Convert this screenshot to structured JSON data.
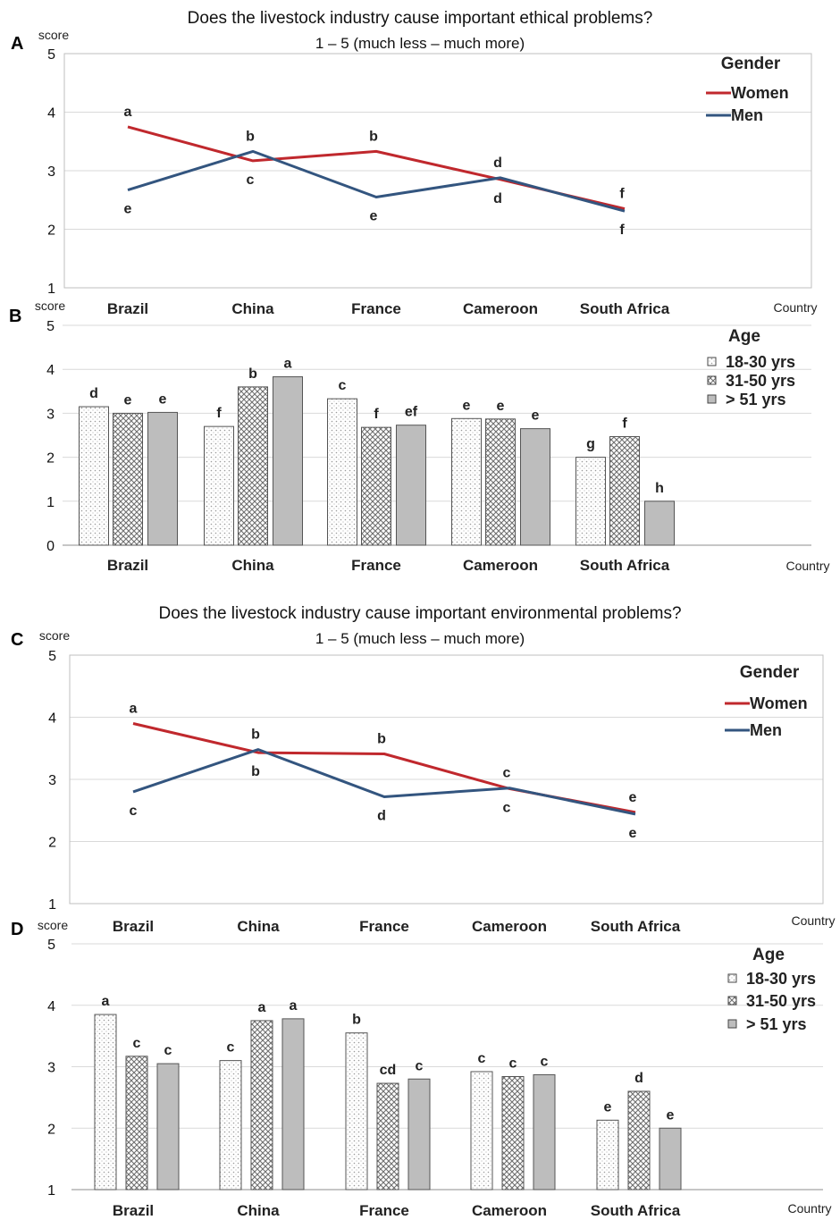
{
  "chart_data": [
    {
      "type": "line",
      "panel": "A",
      "title": "Does the livestock industry cause important ethical problems?",
      "subtitle": "1 – 5 (much less – much more)",
      "ylabel": "score",
      "xlabel": "Country",
      "ylim": [
        1,
        5
      ],
      "yticks": [
        "1",
        "2",
        "3",
        "4",
        "5"
      ],
      "categories": [
        "Brazil",
        "China",
        "France",
        "Cameroon",
        "South Africa"
      ],
      "legend_title": "Gender",
      "legend_position": "top-right",
      "series": [
        {
          "name": "Women",
          "color": "#c0282d",
          "values": [
            3.75,
            3.17,
            3.33,
            2.85,
            2.35
          ],
          "labels": [
            "a",
            "c",
            "b",
            "d",
            "f"
          ]
        },
        {
          "name": "Men",
          "color": "#33557f",
          "values": [
            2.67,
            3.33,
            2.55,
            2.88,
            2.31
          ],
          "labels": [
            "e",
            "b",
            "e",
            "d",
            "f"
          ]
        }
      ]
    },
    {
      "type": "bar",
      "panel": "B",
      "ylabel": "score",
      "xlabel": "Country",
      "ylim": [
        0,
        5
      ],
      "yticks": [
        "0",
        "1",
        "2",
        "3",
        "4",
        "5"
      ],
      "categories": [
        "Brazil",
        "China",
        "France",
        "Cameroon",
        "South Africa"
      ],
      "legend_title": "Age",
      "legend_position": "top-right",
      "series": [
        {
          "name": "18-30 yrs",
          "pattern": "dots",
          "values": [
            3.15,
            2.7,
            3.33,
            2.88,
            2.0
          ],
          "labels": [
            "d",
            "f",
            "c",
            "e",
            "g"
          ]
        },
        {
          "name": "31-50 yrs",
          "pattern": "crosshatch",
          "values": [
            3.0,
            3.6,
            2.68,
            2.87,
            2.47
          ],
          "labels": [
            "e",
            "b",
            "f",
            "e",
            "f"
          ]
        },
        {
          "name": "> 51 yrs",
          "pattern": "solid",
          "values": [
            3.02,
            3.83,
            2.73,
            2.65,
            1.0
          ],
          "labels": [
            "e",
            "a",
            "ef",
            "e",
            "h"
          ]
        }
      ]
    },
    {
      "type": "line",
      "panel": "C",
      "title": "Does the livestock industry cause important environmental problems?",
      "subtitle": "1 – 5 (much less – much more)",
      "ylabel": "score",
      "xlabel": "Country",
      "ylim": [
        1,
        5
      ],
      "yticks": [
        "1",
        "2",
        "3",
        "4",
        "5"
      ],
      "categories": [
        "Brazil",
        "China",
        "France",
        "Cameroon",
        "South Africa"
      ],
      "legend_title": "Gender",
      "legend_position": "top-right",
      "series": [
        {
          "name": "Women",
          "color": "#c0282d",
          "values": [
            3.9,
            3.43,
            3.41,
            2.85,
            2.47
          ],
          "labels": [
            "a",
            "b",
            "b",
            "c",
            "e"
          ]
        },
        {
          "name": "Men",
          "color": "#33557f",
          "values": [
            2.8,
            3.48,
            2.72,
            2.86,
            2.44
          ],
          "labels": [
            "c",
            "b",
            "d",
            "c",
            "e"
          ]
        }
      ]
    },
    {
      "type": "bar",
      "panel": "D",
      "ylabel": "score",
      "xlabel": "Country",
      "ylim": [
        1,
        5
      ],
      "yticks": [
        "1",
        "2",
        "3",
        "4",
        "5"
      ],
      "categories": [
        "Brazil",
        "China",
        "France",
        "Cameroon",
        "South Africa"
      ],
      "legend_title": "Age",
      "legend_position": "top-right",
      "series": [
        {
          "name": "18-30 yrs",
          "pattern": "dots",
          "values": [
            3.85,
            3.1,
            3.55,
            2.92,
            2.13
          ],
          "labels": [
            "a",
            "c",
            "b",
            "c",
            "e"
          ]
        },
        {
          "name": "31-50 yrs",
          "pattern": "crosshatch",
          "values": [
            3.17,
            3.75,
            2.73,
            2.84,
            2.6
          ],
          "labels": [
            "c",
            "a",
            "cd",
            "c",
            "d"
          ]
        },
        {
          "name": "> 51 yrs",
          "pattern": "solid",
          "values": [
            3.05,
            3.78,
            2.8,
            2.87,
            2.0
          ],
          "labels": [
            "c",
            "a",
            "c",
            "c",
            "e"
          ]
        }
      ]
    }
  ]
}
